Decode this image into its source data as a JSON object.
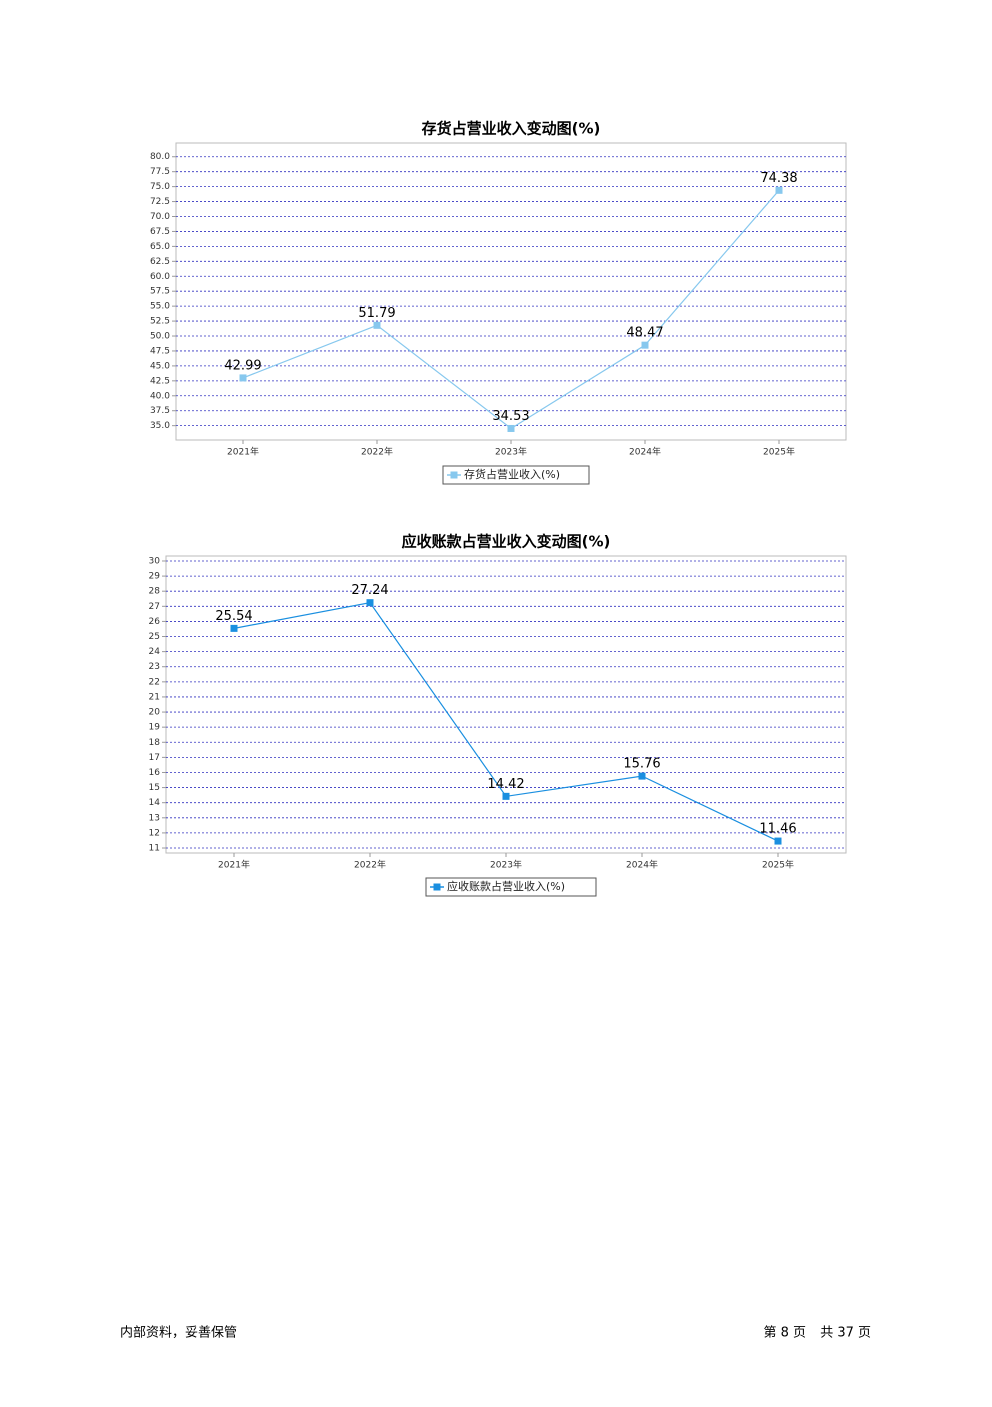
{
  "chart_data": [
    {
      "type": "line",
      "title": "存货占营业收入变动图(%)",
      "categories": [
        "2021年",
        "2022年",
        "2023年",
        "2024年",
        "2025年"
      ],
      "series": [
        {
          "name": "存货占营业收入(%)",
          "color": "#87c8ee",
          "values": [
            42.99,
            51.79,
            34.53,
            48.47,
            74.38
          ]
        }
      ],
      "ylim": [
        32.6,
        82.3
      ],
      "yticks": [
        {
          "value": 35,
          "label": "35.0"
        },
        37.5,
        {
          "value": 40,
          "label": "40.0"
        },
        42.5,
        {
          "value": 45,
          "label": "45.0"
        },
        47.5,
        {
          "value": 50,
          "label": "50.0"
        },
        52.5,
        {
          "value": 55,
          "label": "55.0"
        },
        57.5,
        {
          "value": 60,
          "label": "60.0"
        },
        62.5,
        {
          "value": 65,
          "label": "65.0"
        },
        67.5,
        {
          "value": 70,
          "label": "70.0"
        },
        72.5,
        {
          "value": 75,
          "label": "75.0"
        },
        77.5,
        {
          "value": 80,
          "label": "80.0"
        }
      ],
      "grid": true,
      "legend": "bottom"
    },
    {
      "type": "line",
      "title": "应收账款占营业收入变动图(%)",
      "categories": [
        "2021年",
        "2022年",
        "2023年",
        "2024年",
        "2025年"
      ],
      "series": [
        {
          "name": "应收账款占营业收入(%)",
          "color": "#1a8fe0",
          "values": [
            25.54,
            27.24,
            14.42,
            15.76,
            11.46
          ]
        }
      ],
      "ylim": [
        10.67,
        30.33
      ],
      "yticks": [
        11,
        12,
        13,
        14,
        15,
        16,
        17,
        18,
        19,
        20,
        21,
        22,
        23,
        24,
        25,
        26,
        27,
        28,
        29,
        30
      ],
      "grid": true,
      "legend": "bottom"
    }
  ],
  "footer": {
    "left": "内部资料，妥善保管",
    "page": "第 8 页",
    "total": "共 37 页"
  }
}
